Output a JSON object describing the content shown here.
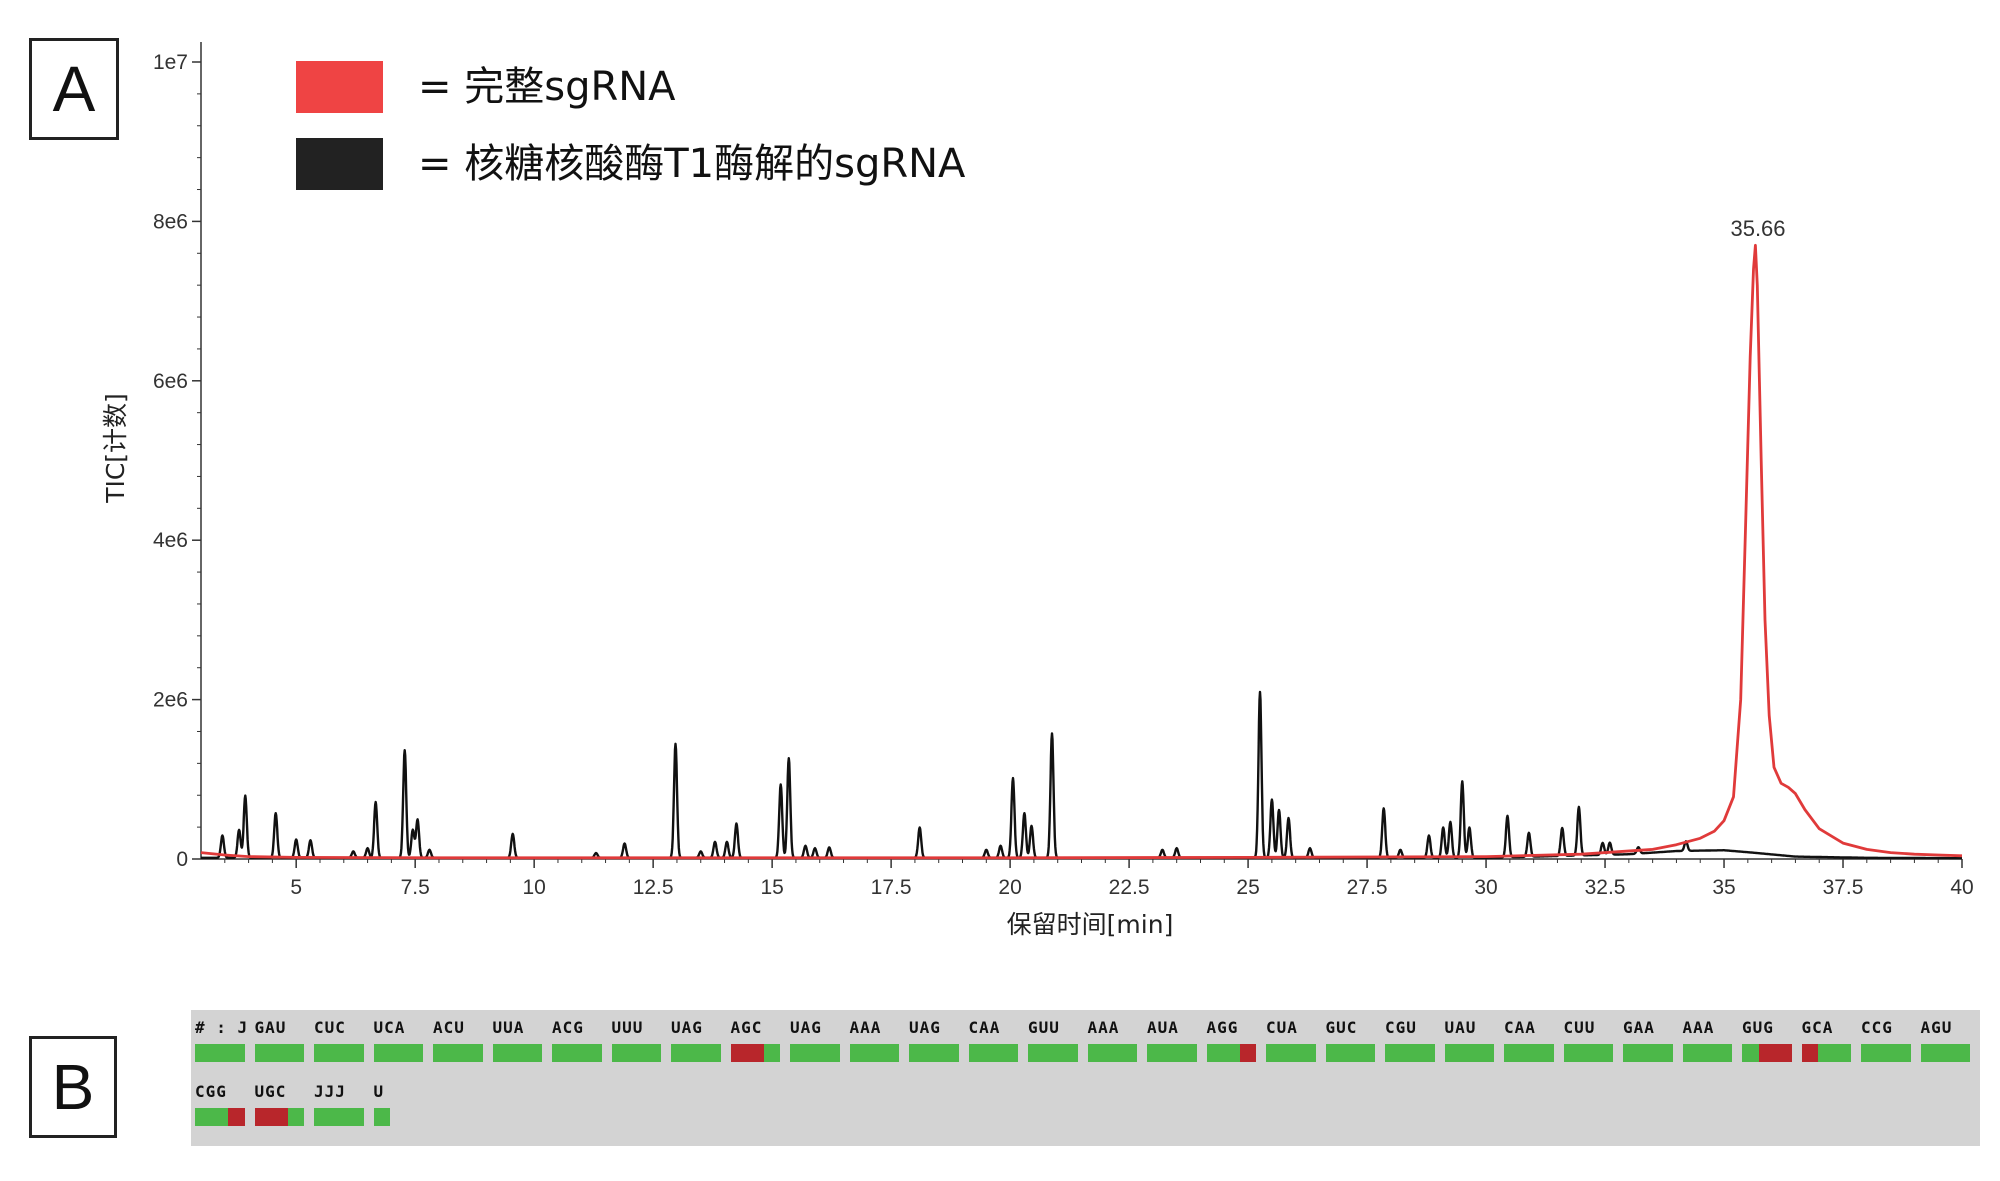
{
  "panel_a_label": "A",
  "panel_b_label": "B",
  "legend": [
    {
      "label": "= 完整sgRNA",
      "color": "#ef4444"
    },
    {
      "label": "= 核糖核酸酶T1酶解的sgRNA",
      "color": "#222222"
    }
  ],
  "chart_data": {
    "type": "line",
    "title": "",
    "xlabel": "保留时间[min]",
    "ylabel": "TIC[计数]",
    "xlim": [
      3,
      40
    ],
    "ylim": [
      0,
      10000000
    ],
    "x_ticks": [
      5,
      7.5,
      10,
      12.5,
      15,
      17.5,
      20,
      22.5,
      25,
      27.5,
      30,
      32.5,
      35,
      37.5,
      40
    ],
    "x_tick_labels": [
      "5",
      "7.5",
      "10",
      "12.5",
      "15",
      "17.5",
      "20",
      "22.5",
      "25",
      "27.5",
      "30",
      "32.5",
      "35",
      "37.5",
      "40"
    ],
    "y_ticks": [
      0,
      2000000,
      4000000,
      6000000,
      8000000,
      10000000
    ],
    "y_tick_labels": [
      "0",
      "2e6",
      "4e6",
      "6e6",
      "8e6",
      "1e7"
    ],
    "annotation": {
      "text": "35.66",
      "x": 35.66,
      "y": 7700000
    },
    "series": [
      {
        "name": "完整sgRNA",
        "color": "#e03a3a",
        "x": [
          3.0,
          3.5,
          4.0,
          5.0,
          8.0,
          12.0,
          20.0,
          25.0,
          30.0,
          32.0,
          33.5,
          34.0,
          34.5,
          34.8,
          35.0,
          35.2,
          35.35,
          35.45,
          35.55,
          35.62,
          35.66,
          35.7,
          35.78,
          35.86,
          35.95,
          36.05,
          36.2,
          36.35,
          36.5,
          36.7,
          37.0,
          37.5,
          38.0,
          38.5,
          39.0,
          39.5,
          40.0
        ],
        "y": [
          80000,
          50000,
          30000,
          20000,
          15000,
          15000,
          15000,
          20000,
          30000,
          60000,
          120000,
          180000,
          260000,
          350000,
          480000,
          780000,
          2000000,
          4100000,
          6300000,
          7400000,
          7700000,
          7200000,
          5000000,
          3000000,
          1800000,
          1150000,
          950000,
          900000,
          820000,
          620000,
          380000,
          200000,
          120000,
          80000,
          60000,
          50000,
          40000
        ]
      },
      {
        "name": "核糖核酸酶T1酶解的sgRNA",
        "color": "#111111",
        "base": [
          [
            3.0,
            15000
          ],
          [
            30.0,
            15000
          ],
          [
            33.0,
            60000
          ],
          [
            34.0,
            100000
          ],
          [
            35.0,
            110000
          ],
          [
            35.6,
            80000
          ],
          [
            36.5,
            30000
          ],
          [
            38.0,
            15000
          ],
          [
            40.0,
            10000
          ]
        ],
        "peaks": [
          [
            3.45,
            280000
          ],
          [
            3.8,
            350000
          ],
          [
            3.93,
            780000
          ],
          [
            4.57,
            560000
          ],
          [
            5.0,
            230000
          ],
          [
            5.3,
            220000
          ],
          [
            6.2,
            80000
          ],
          [
            6.5,
            120000
          ],
          [
            6.67,
            700000
          ],
          [
            7.28,
            1350000
          ],
          [
            7.45,
            350000
          ],
          [
            7.55,
            480000
          ],
          [
            7.8,
            100000
          ],
          [
            9.55,
            300000
          ],
          [
            11.3,
            60000
          ],
          [
            11.9,
            180000
          ],
          [
            12.97,
            1430000
          ],
          [
            13.5,
            80000
          ],
          [
            13.8,
            200000
          ],
          [
            14.05,
            200000
          ],
          [
            14.25,
            430000
          ],
          [
            15.18,
            920000
          ],
          [
            15.35,
            1250000
          ],
          [
            15.7,
            150000
          ],
          [
            15.9,
            120000
          ],
          [
            16.2,
            130000
          ],
          [
            18.1,
            380000
          ],
          [
            19.5,
            100000
          ],
          [
            19.8,
            150000
          ],
          [
            20.06,
            1000000
          ],
          [
            20.3,
            560000
          ],
          [
            20.45,
            400000
          ],
          [
            20.88,
            1560000
          ],
          [
            23.2,
            100000
          ],
          [
            23.5,
            120000
          ],
          [
            25.25,
            2080000
          ],
          [
            25.5,
            730000
          ],
          [
            25.65,
            600000
          ],
          [
            25.85,
            500000
          ],
          [
            26.3,
            120000
          ],
          [
            27.85,
            620000
          ],
          [
            28.2,
            100000
          ],
          [
            28.8,
            280000
          ],
          [
            29.1,
            380000
          ],
          [
            29.25,
            450000
          ],
          [
            29.5,
            960000
          ],
          [
            29.65,
            380000
          ],
          [
            30.45,
            520000
          ],
          [
            30.9,
            300000
          ],
          [
            31.6,
            350000
          ],
          [
            31.95,
            610000
          ],
          [
            32.45,
            150000
          ],
          [
            32.6,
            150000
          ],
          [
            33.2,
            80000
          ],
          [
            34.2,
            120000
          ]
        ]
      }
    ]
  },
  "sequence_rows": [
    {
      "codons": [
        {
          "label": "# : J",
          "flags": [
            0,
            0,
            0
          ]
        },
        {
          "label": "GAU",
          "flags": [
            0,
            0,
            0
          ]
        },
        {
          "label": "CUC",
          "flags": [
            0,
            0,
            0
          ]
        },
        {
          "label": "UCA",
          "flags": [
            0,
            0,
            0
          ]
        },
        {
          "label": "ACU",
          "flags": [
            0,
            0,
            0
          ]
        },
        {
          "label": "UUA",
          "flags": [
            0,
            0,
            0
          ]
        },
        {
          "label": "ACG",
          "flags": [
            0,
            0,
            0
          ]
        },
        {
          "label": "UUU",
          "flags": [
            0,
            0,
            0
          ]
        },
        {
          "label": "UAG",
          "flags": [
            0,
            0,
            0
          ]
        },
        {
          "label": "AGC",
          "flags": [
            1,
            1,
            0
          ]
        },
        {
          "label": "UAG",
          "flags": [
            0,
            0,
            0
          ]
        },
        {
          "label": "AAA",
          "flags": [
            0,
            0,
            0
          ]
        },
        {
          "label": "UAG",
          "flags": [
            0,
            0,
            0
          ]
        },
        {
          "label": "CAA",
          "flags": [
            0,
            0,
            0
          ]
        },
        {
          "label": "GUU",
          "flags": [
            0,
            0,
            0
          ]
        },
        {
          "label": "AAA",
          "flags": [
            0,
            0,
            0
          ]
        },
        {
          "label": "AUA",
          "flags": [
            0,
            0,
            0
          ]
        },
        {
          "label": "AGG",
          "flags": [
            0,
            0,
            1
          ]
        },
        {
          "label": "CUA",
          "flags": [
            0,
            0,
            0
          ]
        },
        {
          "label": "GUC",
          "flags": [
            0,
            0,
            0
          ]
        },
        {
          "label": "CGU",
          "flags": [
            0,
            0,
            0
          ]
        },
        {
          "label": "UAU",
          "flags": [
            0,
            0,
            0
          ]
        },
        {
          "label": "CAA",
          "flags": [
            0,
            0,
            0
          ]
        },
        {
          "label": "CUU",
          "flags": [
            0,
            0,
            0
          ]
        },
        {
          "label": "GAA",
          "flags": [
            0,
            0,
            0
          ]
        },
        {
          "label": "AAA",
          "flags": [
            0,
            0,
            0
          ]
        },
        {
          "label": "GUG",
          "flags": [
            0,
            1,
            1
          ]
        },
        {
          "label": "GCA",
          "flags": [
            1,
            0,
            0
          ]
        },
        {
          "label": "CCG",
          "flags": [
            0,
            0,
            0
          ]
        },
        {
          "label": "AGU",
          "flags": [
            0,
            0,
            0
          ]
        }
      ]
    },
    {
      "codons": [
        {
          "label": "CGG",
          "flags": [
            0,
            0,
            1
          ]
        },
        {
          "label": "UGC",
          "flags": [
            1,
            1,
            0
          ]
        },
        {
          "label": "JJJ",
          "flags": [
            0,
            0,
            0
          ]
        },
        {
          "label": "U",
          "flags": [
            0
          ]
        }
      ]
    }
  ]
}
